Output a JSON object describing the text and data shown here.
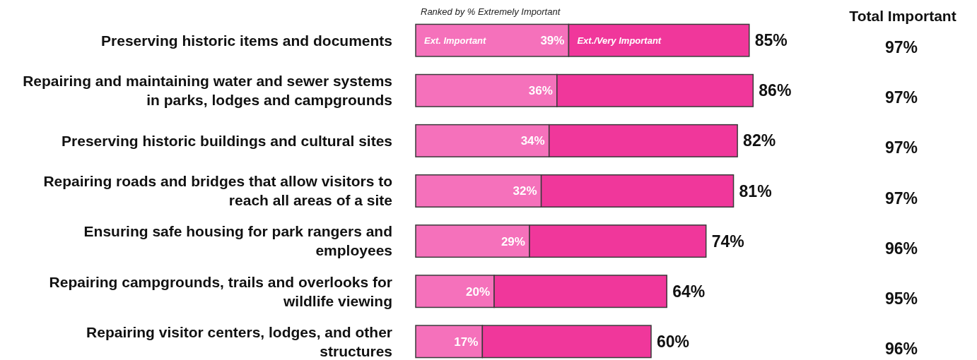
{
  "chart_data": {
    "type": "bar",
    "orientation": "horizontal",
    "stacked": true,
    "subtitle": "Ranked by % Extremely Important",
    "categories": [
      "Preserving historic items and documents",
      "Repairing and maintaining water and sewer systems in parks, lodges and campgrounds",
      "Preserving historic buildings and cultural sites",
      "Repairing roads and bridges that allow visitors to reach all areas of a site",
      "Ensuring safe housing for park rangers and employees",
      "Repairing campgrounds, trails and overlooks for wildlife viewing",
      "Repairing visitor centers, lodges, and other structures"
    ],
    "series": [
      {
        "name": "Ext. Important",
        "color": "#f571bb",
        "values": [
          39,
          36,
          34,
          32,
          29,
          20,
          17
        ],
        "value_labels": [
          "39%",
          "36%",
          "34%",
          "32%",
          "29%",
          "20%",
          "17%"
        ]
      },
      {
        "name": "Ext./Very Important",
        "color": "#f0379b",
        "values": [
          46,
          50,
          48,
          49,
          45,
          44,
          43
        ]
      }
    ],
    "totals": [
      "85%",
      "86%",
      "82%",
      "81%",
      "74%",
      "64%",
      "60%"
    ],
    "annotations": [
      "Total Important",
      "97%",
      "97%",
      "97%",
      "97%",
      "96%",
      "95%",
      "96%"
    ]
  }
}
